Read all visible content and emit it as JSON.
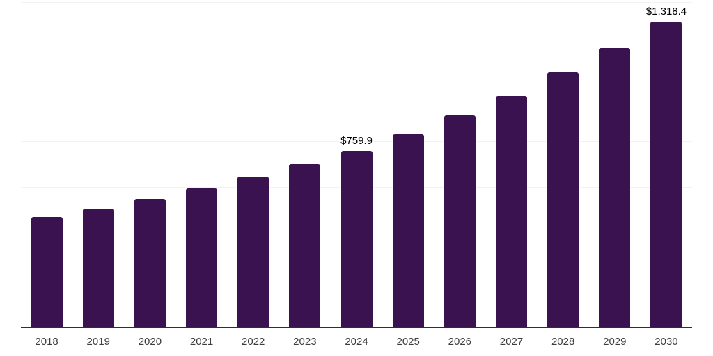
{
  "chart": {
    "background_color": "#ffffff",
    "bar_color": "#39124f",
    "gridline_color": "#f2f2f2",
    "axis_line_color": "#2e2e2e",
    "x_label_color": "#3d3d3d",
    "data_label_color": "#000000"
  },
  "chart_data": {
    "type": "bar",
    "title": "",
    "xlabel": "",
    "ylabel": "",
    "categories": [
      "2018",
      "2019",
      "2020",
      "2021",
      "2022",
      "2023",
      "2024",
      "2025",
      "2026",
      "2027",
      "2028",
      "2029",
      "2030"
    ],
    "values": [
      475,
      511,
      553,
      597,
      648,
      702,
      759.9,
      833,
      913,
      997,
      1099,
      1204,
      1318.4
    ],
    "data_labels": [
      "",
      "",
      "",
      "",
      "",
      "",
      "$759.9",
      "",
      "",
      "",
      "",
      "",
      "$1,318.4"
    ],
    "ylim": [
      0,
      1400
    ],
    "gridline_interval": 200,
    "grid": true,
    "y_axis_tick_labels_visible": false,
    "legend": "none"
  }
}
